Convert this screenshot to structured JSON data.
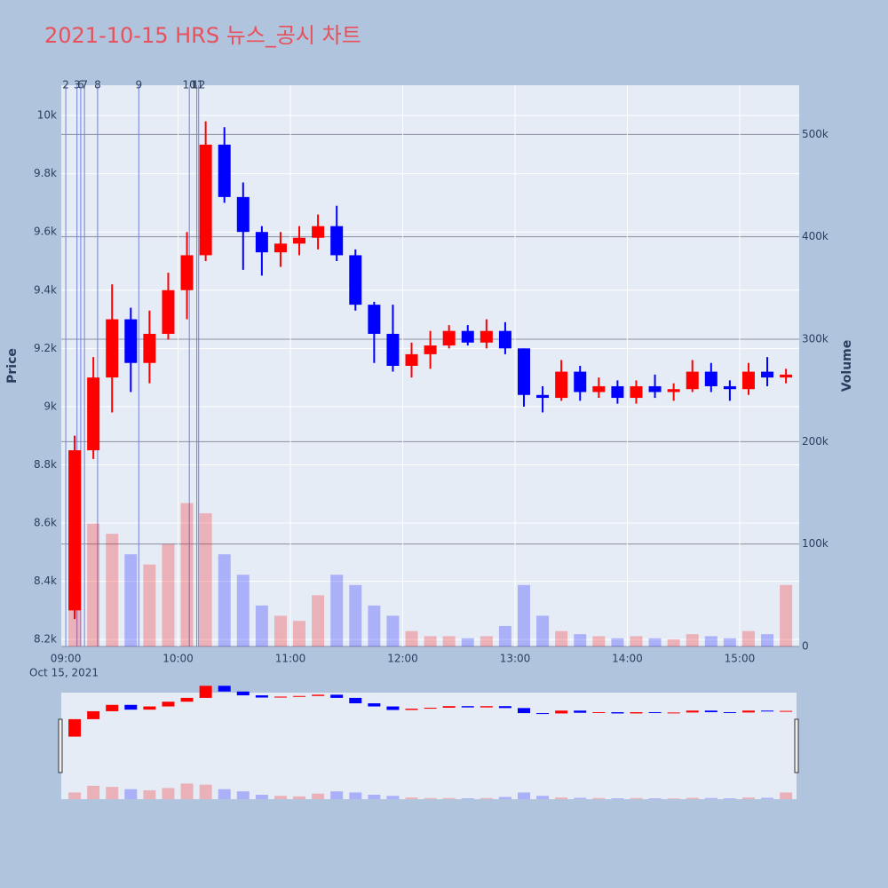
{
  "chart_data": {
    "type": "candlestick",
    "title": "2021-10-15 HRS 뉴스_공시 차트",
    "ylabel": "Price",
    "y2label": "Volume",
    "x_date_label": "Oct 15, 2021",
    "x": [
      "09:00",
      "09:10",
      "09:20",
      "09:30",
      "09:40",
      "09:50",
      "10:00",
      "10:10",
      "10:20",
      "10:30",
      "10:40",
      "10:50",
      "11:00",
      "11:10",
      "11:20",
      "11:30",
      "11:40",
      "11:50",
      "12:00",
      "12:10",
      "12:20",
      "12:30",
      "12:40",
      "12:50",
      "13:00",
      "13:10",
      "13:20",
      "13:30",
      "13:40",
      "13:50",
      "14:00",
      "14:10",
      "14:20",
      "14:30",
      "14:40",
      "14:50",
      "15:00",
      "15:10",
      "15:20"
    ],
    "open": [
      8300,
      8850,
      9100,
      9300,
      9150,
      9250,
      9400,
      9520,
      9900,
      9720,
      9600,
      9530,
      9560,
      9580,
      9620,
      9520,
      9350,
      9250,
      9140,
      9180,
      9210,
      9260,
      9220,
      9260,
      9200,
      9040,
      9030,
      9120,
      9050,
      9070,
      9030,
      9070,
      9050,
      9060,
      9120,
      9070,
      9060,
      9120,
      9100
    ],
    "high": [
      8900,
      9170,
      9420,
      9340,
      9330,
      9460,
      9600,
      9980,
      9960,
      9770,
      9620,
      9600,
      9620,
      9660,
      9690,
      9540,
      9360,
      9350,
      9220,
      9260,
      9280,
      9280,
      9300,
      9290,
      9200,
      9070,
      9160,
      9140,
      9100,
      9090,
      9090,
      9110,
      9080,
      9160,
      9150,
      9090,
      9150,
      9170,
      9130
    ],
    "low": [
      8270,
      8820,
      8980,
      9050,
      9080,
      9230,
      9300,
      9500,
      9700,
      9470,
      9450,
      9480,
      9520,
      9540,
      9500,
      9330,
      9150,
      9120,
      9100,
      9130,
      9200,
      9210,
      9200,
      9180,
      9000,
      8980,
      9020,
      9020,
      9030,
      9010,
      9010,
      9030,
      9020,
      9050,
      9050,
      9020,
      9040,
      9070,
      9080
    ],
    "close": [
      8850,
      9100,
      9300,
      9150,
      9250,
      9400,
      9520,
      9900,
      9720,
      9600,
      9530,
      9560,
      9580,
      9620,
      9520,
      9350,
      9250,
      9140,
      9180,
      9210,
      9260,
      9220,
      9260,
      9200,
      9040,
      9030,
      9120,
      9050,
      9070,
      9030,
      9070,
      9050,
      9060,
      9120,
      9070,
      9060,
      9120,
      9100,
      9110
    ],
    "volume": [
      60000,
      120000,
      110000,
      90000,
      80000,
      100000,
      140000,
      130000,
      90000,
      70000,
      40000,
      30000,
      25000,
      50000,
      70000,
      60000,
      40000,
      30000,
      15000,
      10000,
      10000,
      8000,
      10000,
      20000,
      60000,
      30000,
      15000,
      12000,
      10000,
      8000,
      10000,
      8000,
      7000,
      12000,
      10000,
      8000,
      15000,
      12000,
      60000
    ],
    "up_color": "#ff0000",
    "down_color": "#0000ff",
    "ylim": [
      8176,
      10104
    ],
    "yticks": [
      {
        "value": 8200,
        "label": "8.2k"
      },
      {
        "value": 8400,
        "label": "8.4k"
      },
      {
        "value": 8600,
        "label": "8.6k"
      },
      {
        "value": 8800,
        "label": "8.8k"
      },
      {
        "value": 9000,
        "label": "9k"
      },
      {
        "value": 9200,
        "label": "9.2k"
      },
      {
        "value": 9400,
        "label": "9.4k"
      },
      {
        "value": 9600,
        "label": "9.6k"
      },
      {
        "value": 9800,
        "label": "9.8k"
      },
      {
        "value": 10000,
        "label": "10k"
      }
    ],
    "y2lim": [
      0,
      548000
    ],
    "y2ticks": [
      0,
      {
        "value": 100000,
        "label": "100k"
      },
      {
        "value": 200000,
        "label": "200k"
      },
      {
        "value": 300000,
        "label": "300k"
      },
      {
        "value": 400000,
        "label": "400k"
      },
      {
        "value": 500000,
        "label": "500k"
      }
    ],
    "xlim": [
      "08:57:36",
      "15:31:48"
    ],
    "xticks": [
      "09:00",
      "10:00",
      "11:00",
      "12:00",
      "13:00",
      "14:00",
      "15:00"
    ],
    "news": [
      {
        "label": "2",
        "time": "09:00"
      },
      {
        "label": "3",
        "time": "09:06"
      },
      {
        "label": "6",
        "time": "09:08"
      },
      {
        "label": "7",
        "time": "09:10"
      },
      {
        "label": "8",
        "time": "09:17"
      },
      {
        "label": "9",
        "time": "09:39"
      },
      {
        "label": "10",
        "time": "10:06"
      },
      {
        "label": "11",
        "time": "10:10"
      },
      {
        "label": "12",
        "time": "10:11"
      }
    ],
    "grid": true
  }
}
